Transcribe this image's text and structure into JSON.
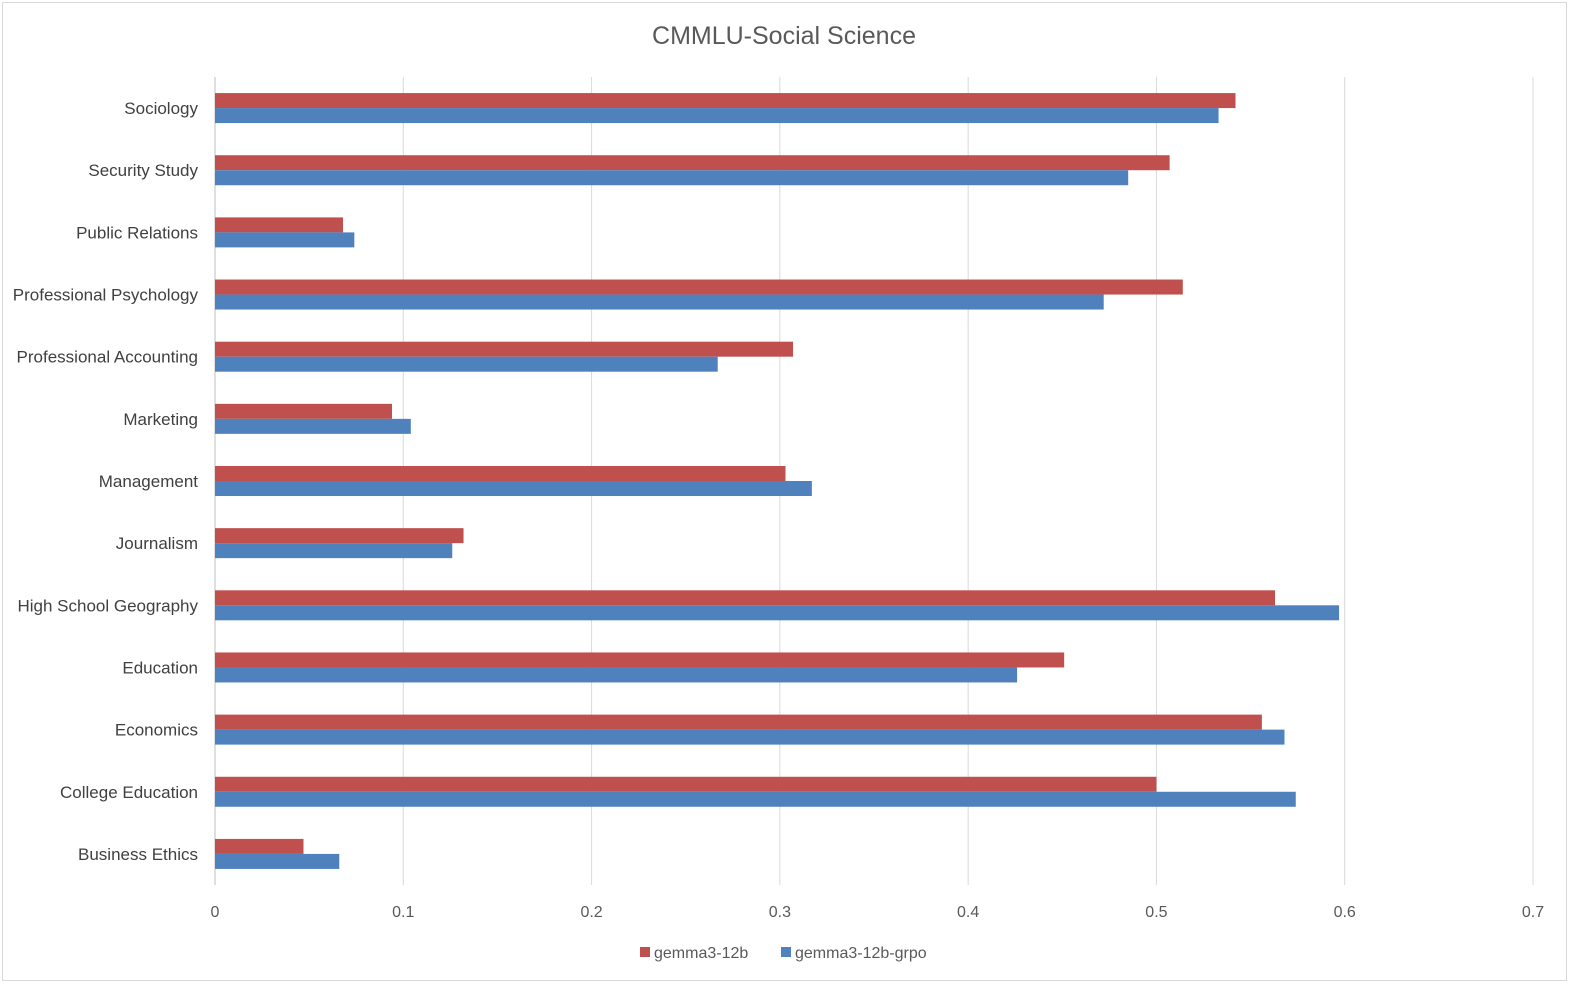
{
  "chart_data": {
    "type": "bar",
    "orientation": "horizontal",
    "title": "CMMLU-Social Science",
    "xlabel": "",
    "ylabel": "",
    "xlim": [
      0,
      0.7
    ],
    "x_ticks": [
      "0",
      "0.1",
      "0.2",
      "0.3",
      "0.4",
      "0.5",
      "0.6",
      "0.7"
    ],
    "x_tick_values": [
      0,
      0.1,
      0.2,
      0.3,
      0.4,
      0.5,
      0.6,
      0.7
    ],
    "grid": "vertical",
    "legend_position": "bottom",
    "categories": [
      "Sociology",
      "Security Study",
      "Public Relations",
      "Professional Psychology",
      "Professional Accounting",
      "Marketing",
      "Management",
      "Journalism",
      "High School Geography",
      "Education",
      "Economics",
      "College Education",
      "Business Ethics"
    ],
    "series": [
      {
        "name": "gemma3-12b",
        "color": "#c0504d",
        "values": [
          0.542,
          0.507,
          0.068,
          0.514,
          0.307,
          0.094,
          0.303,
          0.132,
          0.563,
          0.451,
          0.556,
          0.5,
          0.047
        ]
      },
      {
        "name": "gemma3-12b-grpo",
        "color": "#4f81bd",
        "values": [
          0.533,
          0.485,
          0.074,
          0.472,
          0.267,
          0.104,
          0.317,
          0.126,
          0.597,
          0.426,
          0.568,
          0.574,
          0.066
        ]
      }
    ]
  }
}
